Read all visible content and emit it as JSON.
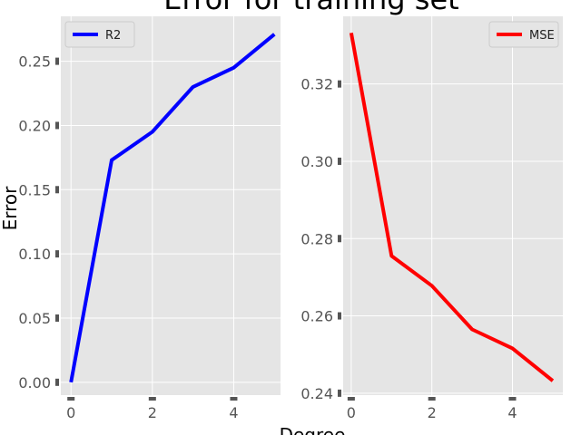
{
  "title": "Error for training set",
  "xlabel": "Degree",
  "ylabel": "Error",
  "chart_data": [
    {
      "type": "line",
      "x": [
        0,
        1,
        2,
        3,
        4,
        5
      ],
      "series": [
        {
          "name": "R2",
          "color": "#0000ff",
          "values": [
            0.0,
            0.173,
            0.195,
            0.23,
            0.245,
            0.271
          ]
        }
      ],
      "xlim": [
        -0.25,
        5.15
      ],
      "ylim": [
        -0.01,
        0.285
      ],
      "xticks": [
        "0",
        "2",
        "4"
      ],
      "yticks": [
        "0.00",
        "0.05",
        "0.10",
        "0.15",
        "0.20",
        "0.25"
      ],
      "legend": "top-left",
      "grid": true
    },
    {
      "type": "line",
      "x": [
        0,
        1,
        2,
        3,
        4,
        5
      ],
      "series": [
        {
          "name": "MSE",
          "color": "#ff0000",
          "values": [
            0.3332,
            0.2755,
            0.2678,
            0.2565,
            0.2516,
            0.2432
          ]
        }
      ],
      "xlim": [
        -0.2,
        5.25
      ],
      "ylim": [
        0.2395,
        0.3375
      ],
      "xticks": [
        "0",
        "2",
        "4"
      ],
      "yticks": [
        "0.24",
        "0.26",
        "0.28",
        "0.30",
        "0.32"
      ],
      "legend": "top-right",
      "grid": true
    }
  ]
}
